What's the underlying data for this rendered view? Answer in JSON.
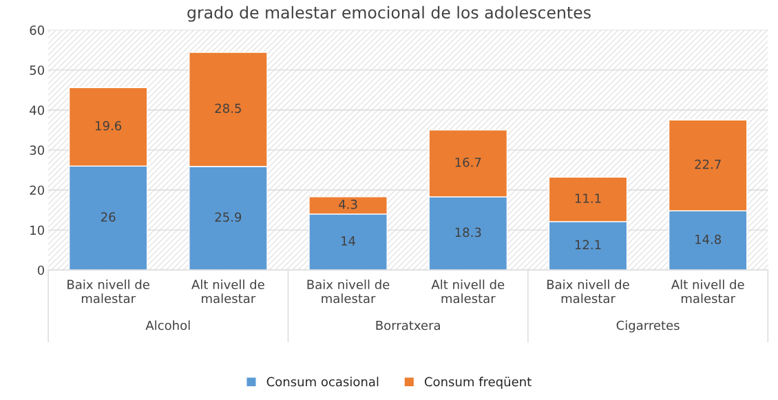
{
  "chart_data": {
    "type": "bar",
    "title": "grado de malestar emocional de los adolescentes",
    "categories": [
      "Baix nivell de malestar",
      "Alt nivell de malestar",
      "Baix nivell de malestar",
      "Alt nivell de malestar",
      "Baix nivell de malestar",
      "Alt nivell de malestar"
    ],
    "series": [
      {
        "name": "Consum ocasional",
        "color": "#5b9bd5",
        "values": [
          26,
          25.9,
          14,
          18.3,
          12.1,
          14.8
        ]
      },
      {
        "name": "Consum freqüent",
        "color": "#ed7d31",
        "values": [
          19.6,
          28.5,
          4.3,
          16.7,
          11.1,
          22.7
        ]
      }
    ],
    "stacked": true,
    "data_labels": true,
    "ylim": [
      0,
      60
    ],
    "yticks": [
      0,
      10,
      20,
      30,
      40,
      50,
      60
    ],
    "grid": "y",
    "legend": "bottom",
    "annotations": [
      "Alcohol",
      "Borratxera",
      "Cigarretes"
    ]
  }
}
